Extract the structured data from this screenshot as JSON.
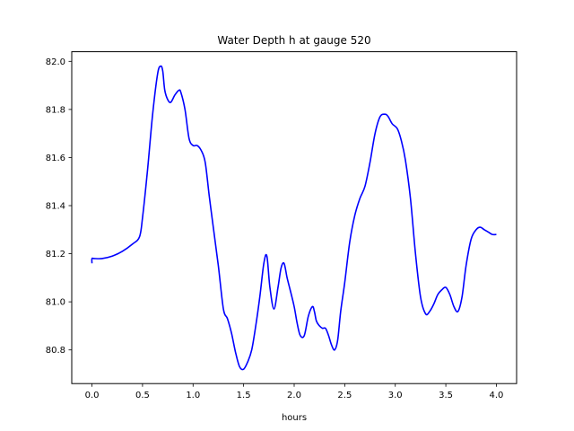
{
  "chart_data": {
    "type": "line",
    "title": "Water Depth h at gauge 520",
    "xlabel": "hours",
    "ylabel": "",
    "xlim": [
      -0.2,
      4.2
    ],
    "ylim": [
      80.66,
      82.04
    ],
    "xticks": [
      0.0,
      0.5,
      1.0,
      1.5,
      2.0,
      2.5,
      3.0,
      3.5,
      4.0
    ],
    "xtick_labels": [
      "0.0",
      "0.5",
      "1.0",
      "1.5",
      "2.0",
      "2.5",
      "3.0",
      "3.5",
      "4.0"
    ],
    "yticks": [
      80.8,
      81.0,
      81.2,
      81.4,
      81.6,
      81.8,
      82.0
    ],
    "ytick_labels": [
      "80.8",
      "81.0",
      "81.2",
      "81.4",
      "81.6",
      "81.8",
      "82.0"
    ],
    "grid": false,
    "series": [
      {
        "color": "#0000ff",
        "x": [
          0.0,
          0.0,
          0.02,
          0.1,
          0.2,
          0.3,
          0.4,
          0.47,
          0.5,
          0.55,
          0.6,
          0.65,
          0.68,
          0.7,
          0.72,
          0.75,
          0.78,
          0.82,
          0.86,
          0.88,
          0.92,
          0.96,
          1.0,
          1.04,
          1.08,
          1.12,
          1.16,
          1.2,
          1.25,
          1.3,
          1.34,
          1.38,
          1.42,
          1.46,
          1.5,
          1.54,
          1.58,
          1.62,
          1.66,
          1.7,
          1.73,
          1.76,
          1.8,
          1.84,
          1.87,
          1.9,
          1.93,
          1.96,
          2.0,
          2.03,
          2.06,
          2.1,
          2.14,
          2.18,
          2.2,
          2.22,
          2.25,
          2.28,
          2.31,
          2.34,
          2.37,
          2.4,
          2.43,
          2.46,
          2.5,
          2.55,
          2.6,
          2.65,
          2.7,
          2.75,
          2.8,
          2.85,
          2.9,
          2.93,
          2.97,
          3.02,
          3.06,
          3.1,
          3.15,
          3.2,
          3.25,
          3.3,
          3.34,
          3.38,
          3.42,
          3.46,
          3.5,
          3.54,
          3.58,
          3.62,
          3.66,
          3.7,
          3.75,
          3.8,
          3.84,
          3.88,
          3.92,
          3.96,
          4.0
        ],
        "y": [
          81.16,
          81.18,
          81.18,
          81.18,
          81.19,
          81.21,
          81.24,
          81.27,
          81.35,
          81.55,
          81.78,
          81.95,
          81.98,
          81.96,
          81.88,
          81.84,
          81.83,
          81.86,
          81.88,
          81.87,
          81.8,
          81.68,
          81.65,
          81.65,
          81.63,
          81.58,
          81.44,
          81.31,
          81.15,
          80.97,
          80.93,
          80.87,
          80.79,
          80.73,
          80.72,
          80.75,
          80.8,
          80.9,
          81.02,
          81.16,
          81.19,
          81.06,
          80.97,
          81.06,
          81.14,
          81.16,
          81.1,
          81.05,
          80.98,
          80.91,
          80.86,
          80.86,
          80.94,
          80.98,
          80.96,
          80.92,
          80.9,
          80.89,
          80.89,
          80.86,
          80.82,
          80.8,
          80.84,
          80.96,
          81.08,
          81.25,
          81.36,
          81.43,
          81.48,
          81.58,
          81.7,
          81.77,
          81.78,
          81.77,
          81.74,
          81.72,
          81.67,
          81.59,
          81.43,
          81.2,
          81.02,
          80.95,
          80.96,
          80.99,
          81.03,
          81.05,
          81.06,
          81.03,
          80.98,
          80.96,
          81.02,
          81.15,
          81.26,
          81.3,
          81.31,
          81.3,
          81.29,
          81.28,
          81.28
        ]
      }
    ]
  }
}
